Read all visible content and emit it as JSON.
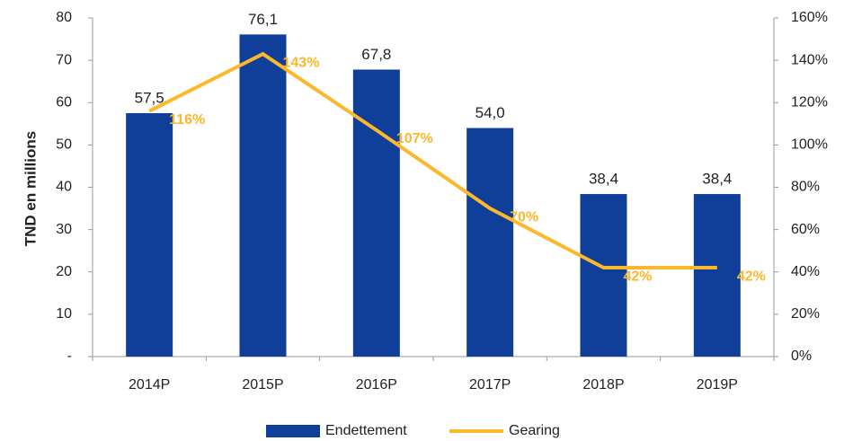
{
  "chart_data": {
    "type": "bar",
    "y_label": "TND en millions",
    "categories": [
      "2014P",
      "2015P",
      "2016P",
      "2017P",
      "2018P",
      "2019P"
    ],
    "series": [
      {
        "name": "Endettement",
        "type": "bar",
        "color": "#0f3f98",
        "values": [
          57.5,
          76.1,
          67.8,
          54.0,
          38.4,
          38.4
        ],
        "value_labels": [
          "57,5",
          "76,1",
          "67,8",
          "54,0",
          "38,4",
          "38,4"
        ]
      },
      {
        "name": "Gearing",
        "type": "line",
        "axis": "y2",
        "color": "#fcb72a",
        "values": [
          116,
          143,
          107,
          70,
          42,
          42
        ],
        "value_labels": [
          "116%",
          "143%",
          "107%",
          "70%",
          "42%",
          "42%"
        ]
      }
    ],
    "ylim": [
      0,
      80
    ],
    "yticks": [
      {
        "value": 0,
        "label": "-"
      },
      10,
      20,
      30,
      40,
      50,
      60,
      70,
      80
    ],
    "y2lim": [
      0,
      160
    ],
    "y2ticks": [
      {
        "value": 0,
        "label": "0%"
      },
      {
        "value": 20,
        "label": "20%"
      },
      {
        "value": 40,
        "label": "40%"
      },
      {
        "value": 60,
        "label": "60%"
      },
      {
        "value": 80,
        "label": "80%"
      },
      {
        "value": 100,
        "label": "100%"
      },
      {
        "value": 120,
        "label": "120%"
      },
      {
        "value": 140,
        "label": "140%"
      },
      {
        "value": 160,
        "label": "160%"
      }
    ],
    "legend": "bottom"
  }
}
